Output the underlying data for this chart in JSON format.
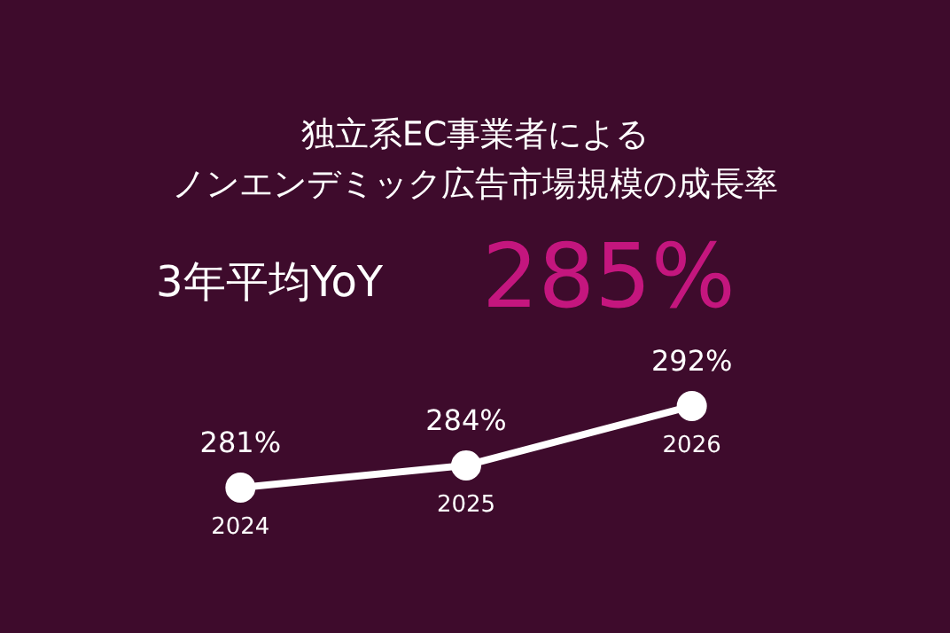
{
  "chart_data": {
    "type": "line",
    "title": "独立系EC事業者による",
    "subtitle": "ノンエンデミック広告市場規模の成長率",
    "annotations": [
      "3年平均YoY",
      "285%"
    ],
    "categories": [
      "2024",
      "2025",
      "2026"
    ],
    "series": [
      {
        "color": "#ffffff",
        "values": [
          281,
          284,
          292
        ],
        "value_labels": [
          "281%",
          "284%",
          "292%"
        ]
      }
    ],
    "marker": "circle",
    "line_style": "solid",
    "legend": false,
    "tick_labels": "x"
  }
}
